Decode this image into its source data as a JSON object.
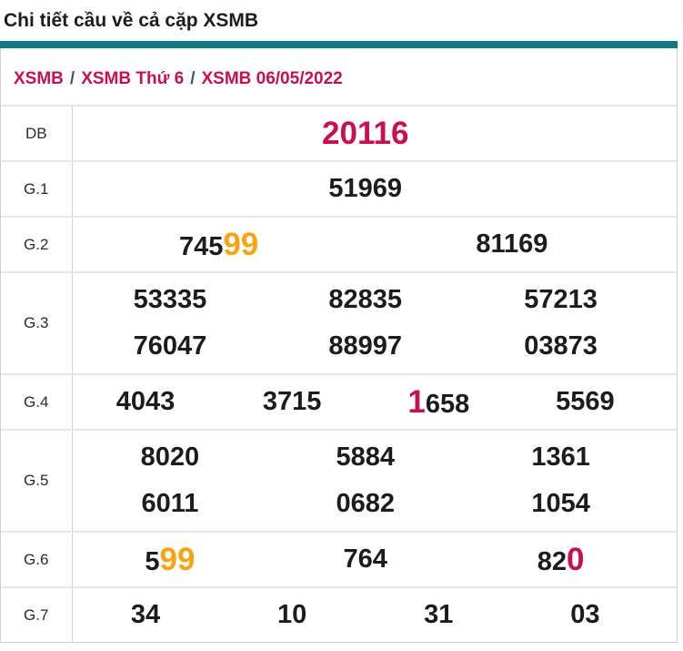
{
  "page_title": "Chi tiết cầu về cả cặp XSMB",
  "colors": {
    "accent_teal": "#0e7b82",
    "crimson": "#c9104e",
    "orange": "#f7a412",
    "separator_gray": "#42526e"
  },
  "breadcrumb": {
    "separator": "/",
    "items": [
      "XSMB",
      "XSMB Thứ 6",
      "XSMB 06/05/2022"
    ]
  },
  "prize_table": {
    "rows": [
      {
        "label": "DB",
        "lines": [
          [
            [
              {
                "t": "20116",
                "c": "crimson"
              }
            ]
          ]
        ]
      },
      {
        "label": "G.1",
        "lines": [
          [
            [
              {
                "t": "51969"
              }
            ]
          ]
        ]
      },
      {
        "label": "G.2",
        "lines": [
          [
            [
              {
                "t": "745"
              },
              {
                "t": "99",
                "c": "orange"
              }
            ],
            [
              {
                "t": "81169"
              }
            ]
          ]
        ]
      },
      {
        "label": "G.3",
        "lines": [
          [
            [
              {
                "t": "53335"
              }
            ],
            [
              {
                "t": "82835"
              }
            ],
            [
              {
                "t": "57213"
              }
            ]
          ],
          [
            [
              {
                "t": "76047"
              }
            ],
            [
              {
                "t": "88997"
              }
            ],
            [
              {
                "t": "03873"
              }
            ]
          ]
        ]
      },
      {
        "label": "G.4",
        "lines": [
          [
            [
              {
                "t": "4043"
              }
            ],
            [
              {
                "t": "3715"
              }
            ],
            [
              {
                "t": "1",
                "c": "crimson"
              },
              {
                "t": "658"
              }
            ],
            [
              {
                "t": "5569"
              }
            ]
          ]
        ]
      },
      {
        "label": "G.5",
        "lines": [
          [
            [
              {
                "t": "8020"
              }
            ],
            [
              {
                "t": "5884"
              }
            ],
            [
              {
                "t": "1361"
              }
            ]
          ],
          [
            [
              {
                "t": "6011"
              }
            ],
            [
              {
                "t": "0682"
              }
            ],
            [
              {
                "t": "1054"
              }
            ]
          ]
        ]
      },
      {
        "label": "G.6",
        "lines": [
          [
            [
              {
                "t": "5"
              },
              {
                "t": "99",
                "c": "orange"
              }
            ],
            [
              {
                "t": "764"
              }
            ],
            [
              {
                "t": "82"
              },
              {
                "t": "0",
                "c": "crimson"
              }
            ]
          ]
        ]
      },
      {
        "label": "G.7",
        "lines": [
          [
            [
              {
                "t": "34"
              }
            ],
            [
              {
                "t": "10"
              }
            ],
            [
              {
                "t": "31"
              }
            ],
            [
              {
                "t": "03"
              }
            ]
          ]
        ]
      }
    ]
  }
}
